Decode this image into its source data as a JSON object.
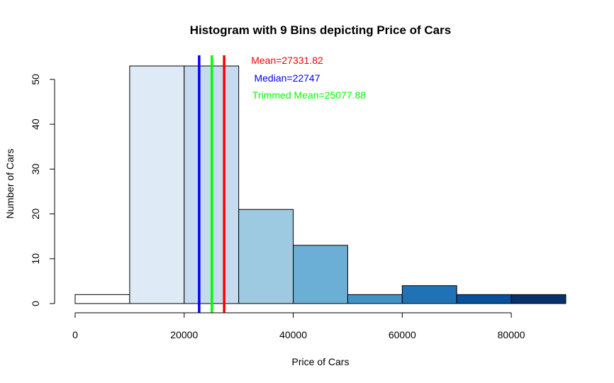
{
  "chart_data": {
    "type": "bar",
    "title": "Histogram with 9 Bins depicting Price of Cars",
    "xlabel": "Price of Cars",
    "ylabel": "Number of Cars",
    "xlim": [
      0,
      90000
    ],
    "ylim": [
      0,
      53
    ],
    "bin_edges": [
      0,
      10000,
      20000,
      30000,
      40000,
      50000,
      60000,
      70000,
      80000,
      90000
    ],
    "values": [
      2,
      53,
      53,
      21,
      13,
      2,
      4,
      2,
      2
    ],
    "bar_colors": [
      "#FFFFFF",
      "#DEEBF7",
      "#C6DBEF",
      "#9ECAE1",
      "#6BAED6",
      "#4292C6",
      "#2171B5",
      "#08519C",
      "#08306B"
    ],
    "x_ticks": [
      0,
      20000,
      40000,
      60000,
      80000
    ],
    "x_tick_labels": [
      "0",
      "20000",
      "40000",
      "60000",
      "80000"
    ],
    "y_ticks": [
      0,
      10,
      20,
      30,
      40,
      50
    ],
    "y_tick_labels": [
      "0",
      "10",
      "20",
      "30",
      "40",
      "50"
    ],
    "grid": false,
    "reference_lines": [
      {
        "name": "Median",
        "value": 22747,
        "color": "#0000FF"
      },
      {
        "name": "Trimmed Mean",
        "value": 25077.88,
        "color": "#00FF00"
      },
      {
        "name": "Mean",
        "value": 27331.82,
        "color": "#FF0000"
      }
    ],
    "annotations": [
      {
        "text": "Mean=27331.82",
        "color": "#FF0000"
      },
      {
        "text": "Median=22747",
        "color": "#0000FF"
      },
      {
        "text": "Trimmed Mean=25077.88",
        "color": "#00FF00"
      }
    ]
  }
}
